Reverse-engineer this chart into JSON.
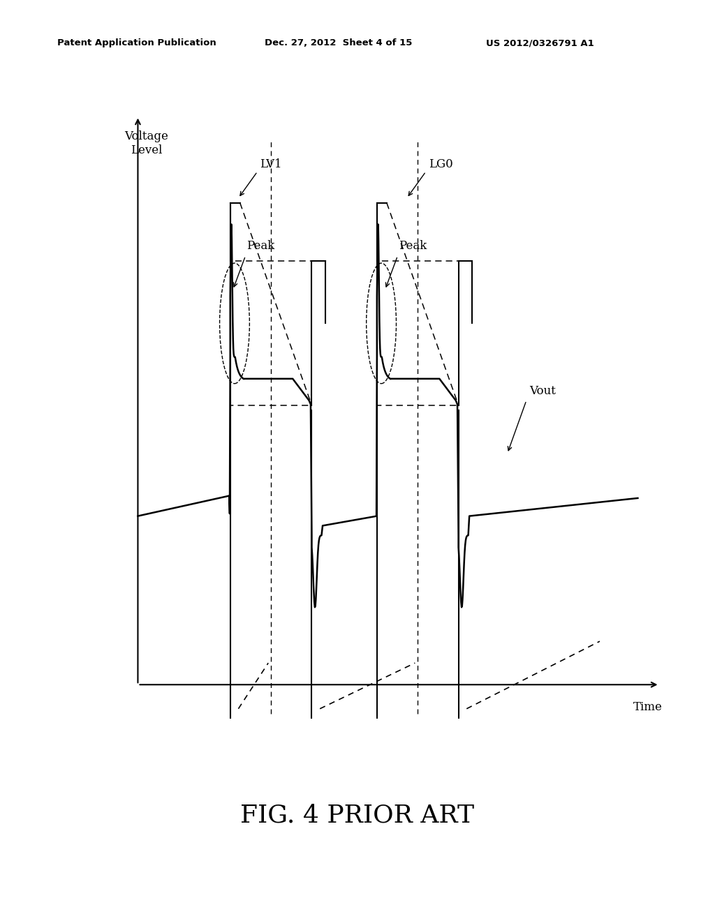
{
  "bg_color": "#ffffff",
  "header_left": "Patent Application Publication",
  "header_mid": "Dec. 27, 2012  Sheet 4 of 15",
  "header_right": "US 2012/0326791 A1",
  "caption": "FIG. 4 PRIOR ART",
  "ylabel": "Voltage\nLevel",
  "xlabel": "Time",
  "label_LV1": "LV1",
  "label_LG0": "LG0",
  "label_Peak1": "Peak",
  "label_Peak2": "Peak",
  "label_Vout": "Vout"
}
